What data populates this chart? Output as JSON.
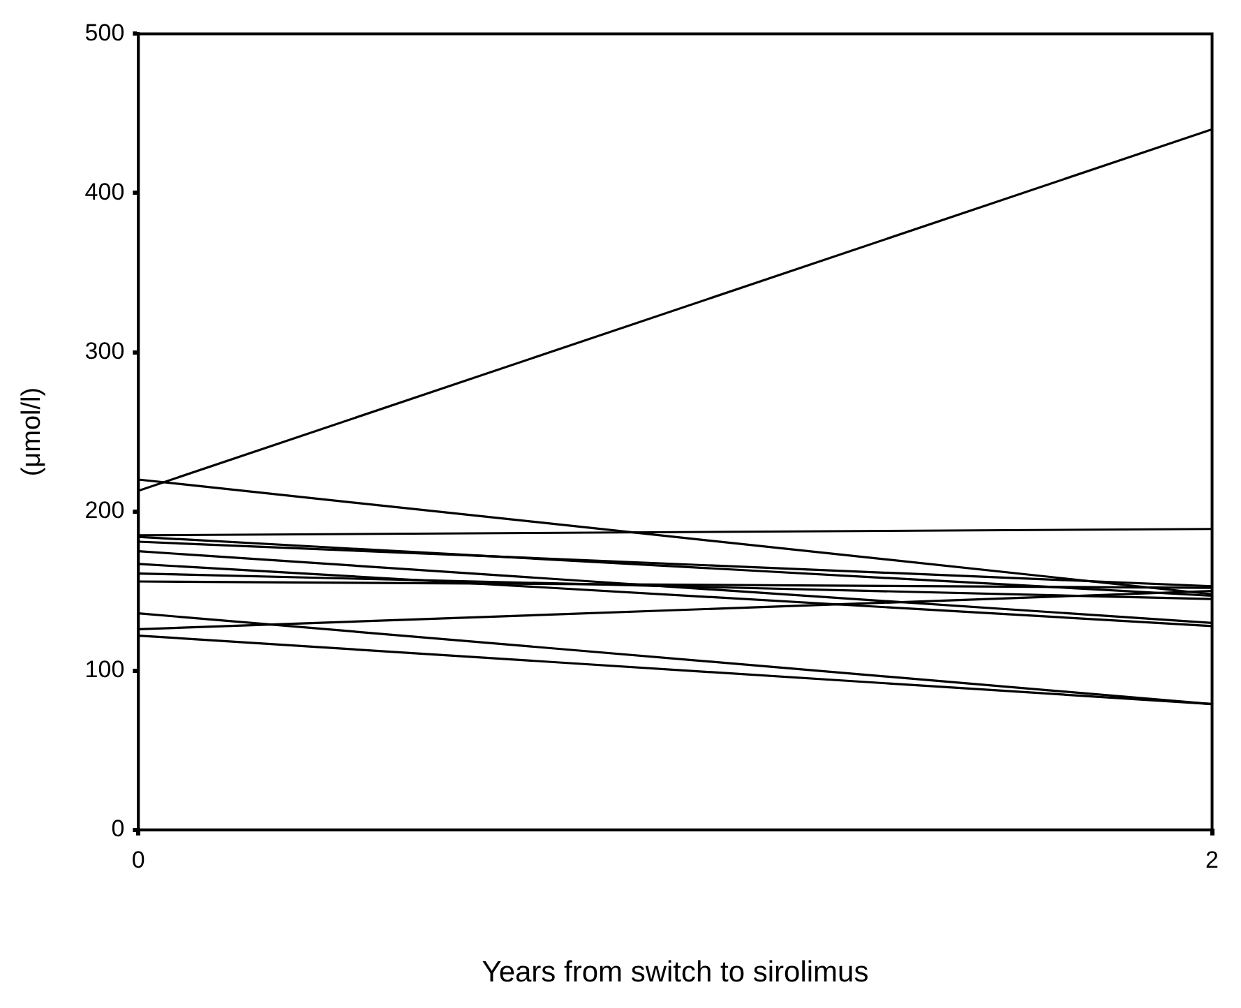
{
  "chart_data": {
    "type": "line",
    "xlabel": "Years from switch to sirolimus",
    "ylabel": "(μmol/l)",
    "x": [
      0,
      2
    ],
    "xlim": [
      0,
      2
    ],
    "xticks": [
      0,
      2
    ],
    "ylim": [
      0,
      500
    ],
    "yticks": [
      0,
      100,
      200,
      300,
      400,
      500
    ],
    "grid": false,
    "legend": false,
    "marker": "none",
    "line_style": "solid",
    "series": [
      {
        "color": "#000000",
        "values": [
          213,
          440
        ]
      },
      {
        "color": "#000000",
        "values": [
          220,
          148
        ]
      },
      {
        "color": "#000000",
        "values": [
          185,
          189
        ]
      },
      {
        "color": "#000000",
        "values": [
          184,
          147
        ]
      },
      {
        "color": "#000000",
        "values": [
          181,
          153
        ]
      },
      {
        "color": "#000000",
        "values": [
          175,
          130
        ]
      },
      {
        "color": "#000000",
        "values": [
          167,
          128
        ]
      },
      {
        "color": "#000000",
        "values": [
          161,
          145
        ]
      },
      {
        "color": "#000000",
        "values": [
          156,
          152
        ]
      },
      {
        "color": "#000000",
        "values": [
          136,
          79
        ]
      },
      {
        "color": "#000000",
        "values": [
          126,
          150
        ]
      },
      {
        "color": "#000000",
        "values": [
          122,
          79
        ]
      }
    ]
  }
}
